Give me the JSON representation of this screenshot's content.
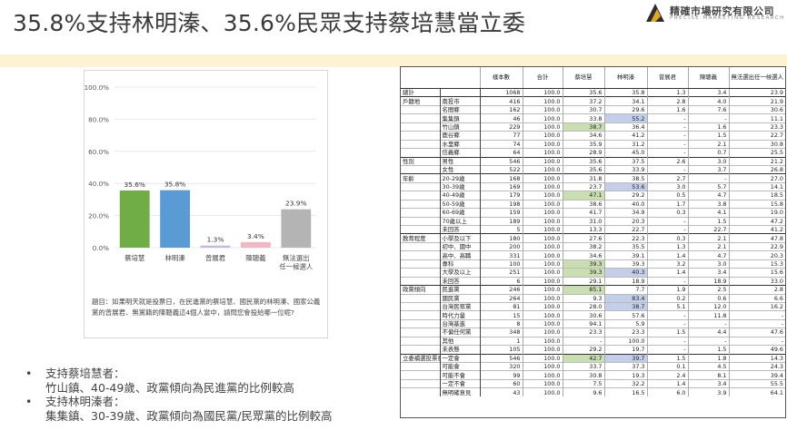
{
  "slide": {
    "title": "35.8%支持林明溱、35.6%民眾支持蔡培慧當立委"
  },
  "logo": {
    "name_cn": "精確市場研究有限公司",
    "name_en": "PRECISE MARKETING RESEARCH",
    "colors": {
      "gold": "#e3a81f",
      "dark": "#2d2d2d"
    }
  },
  "chart_data": {
    "type": "bar",
    "categories": [
      "蔡培慧",
      "林明溱",
      "曾展君",
      "陳聰義",
      "無法選出任一候選人"
    ],
    "values": [
      35.6,
      35.8,
      1.3,
      3.4,
      23.9
    ],
    "value_labels": [
      "35.6%",
      "35.8%",
      "1.3%",
      "3.4%",
      "23.9%"
    ],
    "colors": [
      "#70ad47",
      "#5b9bd5",
      "#c9b8de",
      "#f4b6c2",
      "#b4b4b4"
    ],
    "ylim": [
      0,
      100
    ],
    "yticks": [
      "0.0%",
      "20.0%",
      "40.0%",
      "60.0%",
      "80.0%",
      "100.0%"
    ],
    "grid": true,
    "title": "",
    "xlabel": "",
    "ylabel": ""
  },
  "chart": {
    "category_lines": [
      [
        "蔡培慧"
      ],
      [
        "林明溱"
      ],
      [
        "曾展君"
      ],
      [
        "陳聰義"
      ],
      [
        "無法選出",
        "任一候選人"
      ]
    ]
  },
  "question": "題目：如果明天就是投票日，在民進黨的蔡培慧、國民黨的林明溱、國家公義黨的曾展君、無黨籍的陳聰義這4個人當中，請問您會投給哪一位呢?",
  "bullets": [
    {
      "head": "支持蔡培慧者：",
      "detail": "竹山鎮、40-49歲、政黨傾向為民進黨的比例較高"
    },
    {
      "head": "支持林明溱者：",
      "detail": "集集鎮、30-39歲、政黨傾向為國民黨/民眾黨的比例較高"
    }
  ],
  "table": {
    "headers": [
      "",
      "",
      "樣本數",
      "合計",
      "蔡培慧",
      "林明溱",
      "曾展君",
      "陳聰義",
      "無法選出任一候選人"
    ],
    "highlight_colors": {
      "g": "#c9dfb1",
      "b": "#c3cfe8"
    },
    "rows": [
      {
        "g": "總計",
        "s": "",
        "v": [
          "1068",
          "100.0",
          "35.6",
          "35.8",
          "1.3",
          "3.4",
          "23.9"
        ],
        "gs": true
      },
      {
        "g": "戶籍地",
        "s": "南投市",
        "v": [
          "416",
          "100.0",
          "37.2",
          "34.1",
          "2.8",
          "4.0",
          "21.9"
        ],
        "gs": true
      },
      {
        "g": "",
        "s": "名間鄉",
        "v": [
          "162",
          "100.0",
          "30.7",
          "29.6",
          "1.6",
          "7.6",
          "30.6"
        ]
      },
      {
        "g": "",
        "s": "集集鎮",
        "v": [
          "46",
          "100.0",
          "33.8",
          "55.2",
          "-",
          "-",
          "11.1"
        ],
        "hl": {
          "3": "b"
        }
      },
      {
        "g": "",
        "s": "竹山鎮",
        "v": [
          "229",
          "100.0",
          "38.7",
          "36.4",
          "-",
          "1.6",
          "23.3"
        ],
        "hl": {
          "2": "g"
        }
      },
      {
        "g": "",
        "s": "鹿谷鄉",
        "v": [
          "77",
          "100.0",
          "34.6",
          "41.2",
          "-",
          "1.5",
          "22.7"
        ]
      },
      {
        "g": "",
        "s": "水里鄉",
        "v": [
          "74",
          "100.0",
          "35.9",
          "31.2",
          "-",
          "2.1",
          "30.8"
        ]
      },
      {
        "g": "",
        "s": "信義鄉",
        "v": [
          "64",
          "100.0",
          "28.9",
          "45.0",
          "-",
          "0.7",
          "25.5"
        ]
      },
      {
        "g": "性別",
        "s": "男性",
        "v": [
          "546",
          "100.0",
          "35.6",
          "37.5",
          "2.6",
          "3.0",
          "21.2"
        ],
        "gs": true
      },
      {
        "g": "",
        "s": "女性",
        "v": [
          "522",
          "100.0",
          "35.6",
          "33.9",
          "-",
          "3.7",
          "26.8"
        ]
      },
      {
        "g": "年齡",
        "s": "20-29歲",
        "v": [
          "168",
          "100.0",
          "31.8",
          "38.5",
          "2.7",
          "-",
          "27.0"
        ],
        "gs": true
      },
      {
        "g": "",
        "s": "30-39歲",
        "v": [
          "169",
          "100.0",
          "23.7",
          "53.6",
          "3.0",
          "5.7",
          "14.1"
        ],
        "hl": {
          "3": "b"
        }
      },
      {
        "g": "",
        "s": "40-49歲",
        "v": [
          "179",
          "100.0",
          "47.1",
          "29.2",
          "0.5",
          "4.7",
          "18.5"
        ],
        "hl": {
          "2": "g"
        }
      },
      {
        "g": "",
        "s": "50-59歲",
        "v": [
          "198",
          "100.0",
          "38.6",
          "40.0",
          "1.7",
          "3.8",
          "15.8"
        ]
      },
      {
        "g": "",
        "s": "60-69歲",
        "v": [
          "159",
          "100.0",
          "41.7",
          "34.9",
          "0.3",
          "4.1",
          "19.0"
        ]
      },
      {
        "g": "",
        "s": "70歲以上",
        "v": [
          "189",
          "100.0",
          "31.0",
          "20.3",
          "-",
          "1.5",
          "47.2"
        ]
      },
      {
        "g": "",
        "s": "未回答",
        "v": [
          "5",
          "100.0",
          "13.3",
          "22.7",
          "-",
          "22.7",
          "41.2"
        ]
      },
      {
        "g": "教育程度",
        "s": "小學及以下",
        "v": [
          "180",
          "100.0",
          "27.6",
          "22.3",
          "0.3",
          "2.1",
          "47.8"
        ],
        "gs": true
      },
      {
        "g": "",
        "s": "初中、國中",
        "v": [
          "200",
          "100.0",
          "38.2",
          "35.5",
          "1.3",
          "2.1",
          "22.9"
        ]
      },
      {
        "g": "",
        "s": "高中、高職",
        "v": [
          "331",
          "100.0",
          "34.6",
          "39.1",
          "1.4",
          "4.7",
          "20.3"
        ]
      },
      {
        "g": "",
        "s": "專科",
        "v": [
          "100",
          "100.0",
          "39.3",
          "39.3",
          "3.2",
          "3.0",
          "15.3"
        ],
        "hl": {
          "2": "g"
        }
      },
      {
        "g": "",
        "s": "大學及以上",
        "v": [
          "251",
          "100.0",
          "39.3",
          "40.3",
          "1.4",
          "3.4",
          "15.6"
        ],
        "hl": {
          "2": "g",
          "3": "b"
        }
      },
      {
        "g": "",
        "s": "未回答",
        "v": [
          "6",
          "100.0",
          "29.1",
          "18.9",
          "-",
          "18.9",
          "33.0"
        ]
      },
      {
        "g": "政黨傾向",
        "s": "民進黨",
        "v": [
          "246",
          "100.0",
          "85.1",
          "7.7",
          "1.9",
          "2.5",
          "2.8"
        ],
        "hl": {
          "2": "g"
        },
        "gs": true
      },
      {
        "g": "",
        "s": "國民黨",
        "v": [
          "264",
          "100.0",
          "9.3",
          "83.4",
          "0.2",
          "0.6",
          "6.6"
        ],
        "hl": {
          "3": "b"
        }
      },
      {
        "g": "",
        "s": "台灣民眾黨",
        "v": [
          "81",
          "100.0",
          "28.0",
          "38.7",
          "5.1",
          "12.0",
          "16.2"
        ],
        "hl": {
          "3": "b"
        }
      },
      {
        "g": "",
        "s": "時代力量",
        "v": [
          "15",
          "100.0",
          "30.6",
          "57.6",
          "-",
          "11.8",
          "-"
        ]
      },
      {
        "g": "",
        "s": "台灣基進",
        "v": [
          "8",
          "100.0",
          "94.1",
          "5.9",
          "-",
          "-",
          "-"
        ]
      },
      {
        "g": "",
        "s": "不偏任何黨",
        "v": [
          "348",
          "100.0",
          "23.3",
          "23.3",
          "1.5",
          "4.4",
          "47.6"
        ]
      },
      {
        "g": "",
        "s": "其他",
        "v": [
          "1",
          "100.0",
          "-",
          "100.0",
          "-",
          "-",
          "-"
        ]
      },
      {
        "g": "",
        "s": "未表態",
        "v": [
          "105",
          "100.0",
          "29.2",
          "19.7",
          "-",
          "1.5",
          "49.6"
        ]
      },
      {
        "g": "立委補選投票意願",
        "s": "一定會",
        "v": [
          "546",
          "100.0",
          "42.7",
          "39.7",
          "1.5",
          "1.8",
          "14.3"
        ],
        "hl": {
          "2": "g",
          "3": "b"
        },
        "gs": true
      },
      {
        "g": "",
        "s": "可能會",
        "v": [
          "320",
          "100.0",
          "33.7",
          "37.3",
          "0.1",
          "4.5",
          "24.3"
        ]
      },
      {
        "g": "",
        "s": "可能不會",
        "v": [
          "99",
          "100.0",
          "30.8",
          "19.3",
          "2.4",
          "8.1",
          "39.4"
        ]
      },
      {
        "g": "",
        "s": "一定不會",
        "v": [
          "60",
          "100.0",
          "7.5",
          "32.2",
          "1.4",
          "3.4",
          "55.5"
        ]
      },
      {
        "g": "",
        "s": "無明確意見",
        "v": [
          "43",
          "100.0",
          "9.6",
          "16.5",
          "6.0",
          "3.9",
          "64.1"
        ]
      }
    ]
  }
}
